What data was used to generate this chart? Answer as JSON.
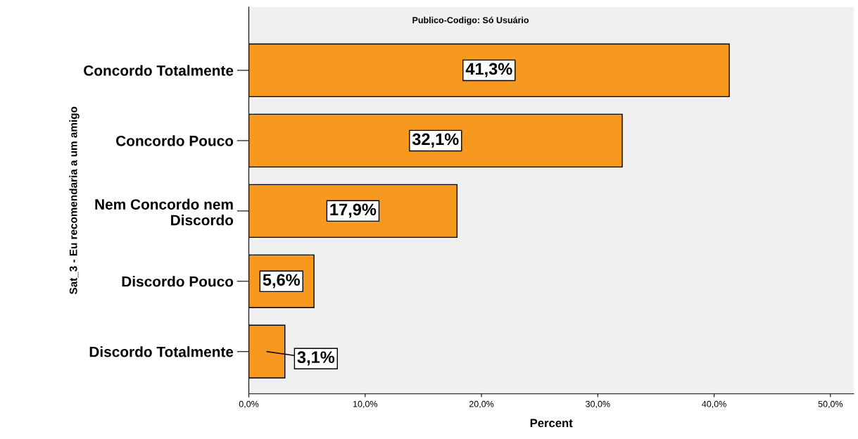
{
  "chart_data": {
    "type": "bar",
    "orientation": "horizontal",
    "title": "Publico-Codigo: Só Usuário",
    "categories": [
      "Concordo Totalmente",
      "Concordo Pouco",
      "Nem Concordo nem\nDiscordo",
      "Discordo Pouco",
      "Discordo Totalmente"
    ],
    "values": [
      41.3,
      32.1,
      17.9,
      5.6,
      3.1
    ],
    "value_labels": [
      "41,3%",
      "32,1%",
      "17,9%",
      "5,6%",
      "3,1%"
    ],
    "color": "#f7991f",
    "xlabel": "Percent",
    "ylabel": "Sat_3 - Eu recomendaria a um amigo",
    "xlim": [
      0,
      52
    ],
    "xticks": [
      {
        "value": 0,
        "label": "0,0%"
      },
      {
        "value": 10,
        "label": "10,0%"
      },
      {
        "value": 20,
        "label": "20,0%"
      },
      {
        "value": 30,
        "label": "30,0%"
      },
      {
        "value": 40,
        "label": "40,0%"
      },
      {
        "value": 50,
        "label": "50,0%"
      }
    ],
    "grid": false,
    "legend": false
  }
}
